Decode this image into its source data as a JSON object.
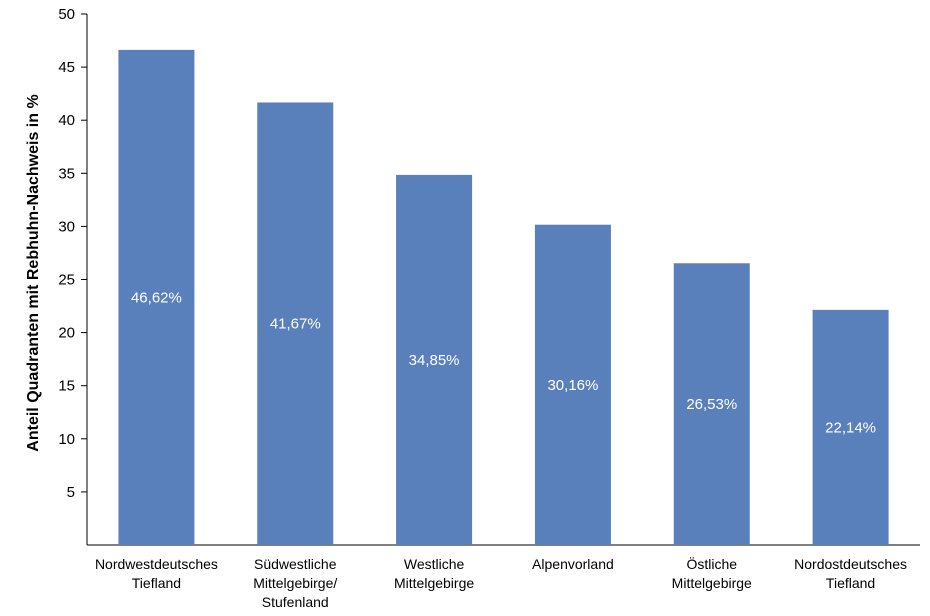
{
  "chart_data": {
    "type": "bar",
    "title": "",
    "xlabel": "",
    "ylabel": "Anteil Quadranten mit Rebhuhn-Nachweis in %",
    "ylim": [
      0,
      50
    ],
    "yticks": [
      5,
      10,
      15,
      20,
      25,
      30,
      35,
      40,
      45,
      50
    ],
    "categories": [
      [
        "Nordwestdeutsches",
        "Tiefland"
      ],
      [
        "Südwestliche",
        "Mittelgebirge/",
        "Stufenland"
      ],
      [
        "Westliche",
        "Mittelgebirge"
      ],
      [
        "Alpenvorland"
      ],
      [
        "Östliche",
        "Mittelgebirge"
      ],
      [
        "Nordostdeutsches",
        "Tiefland"
      ]
    ],
    "values": [
      46.62,
      41.67,
      34.85,
      30.16,
      26.53,
      22.14
    ],
    "data_labels": [
      "46,62%",
      "41,67%",
      "34,85%",
      "30,16%",
      "26,53%",
      "22,14%"
    ],
    "bar_color": "#5a80bc",
    "grid": false,
    "legend": false
  }
}
